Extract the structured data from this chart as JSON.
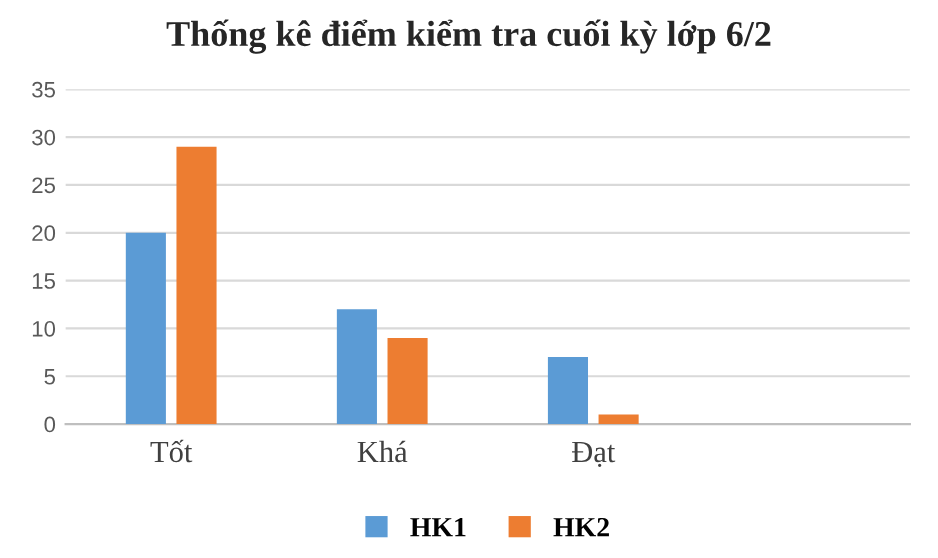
{
  "chart_data": {
    "type": "bar",
    "title": "Thống kê điểm kiểm tra cuối kỳ lớp 6/2",
    "categories": [
      "Tốt",
      "Khá",
      "Đạt",
      null
    ],
    "series": [
      {
        "name": "HK1",
        "color": "#5b9bd5",
        "values": [
          20,
          12,
          7,
          null
        ]
      },
      {
        "name": "HK2",
        "color": "#ed7d31",
        "values": [
          29,
          9,
          1,
          null
        ]
      }
    ],
    "ylim": [
      0,
      35
    ],
    "yticks": [
      0,
      5,
      10,
      15,
      20,
      25,
      30,
      35
    ],
    "grid": "y",
    "legend": "bottom"
  }
}
